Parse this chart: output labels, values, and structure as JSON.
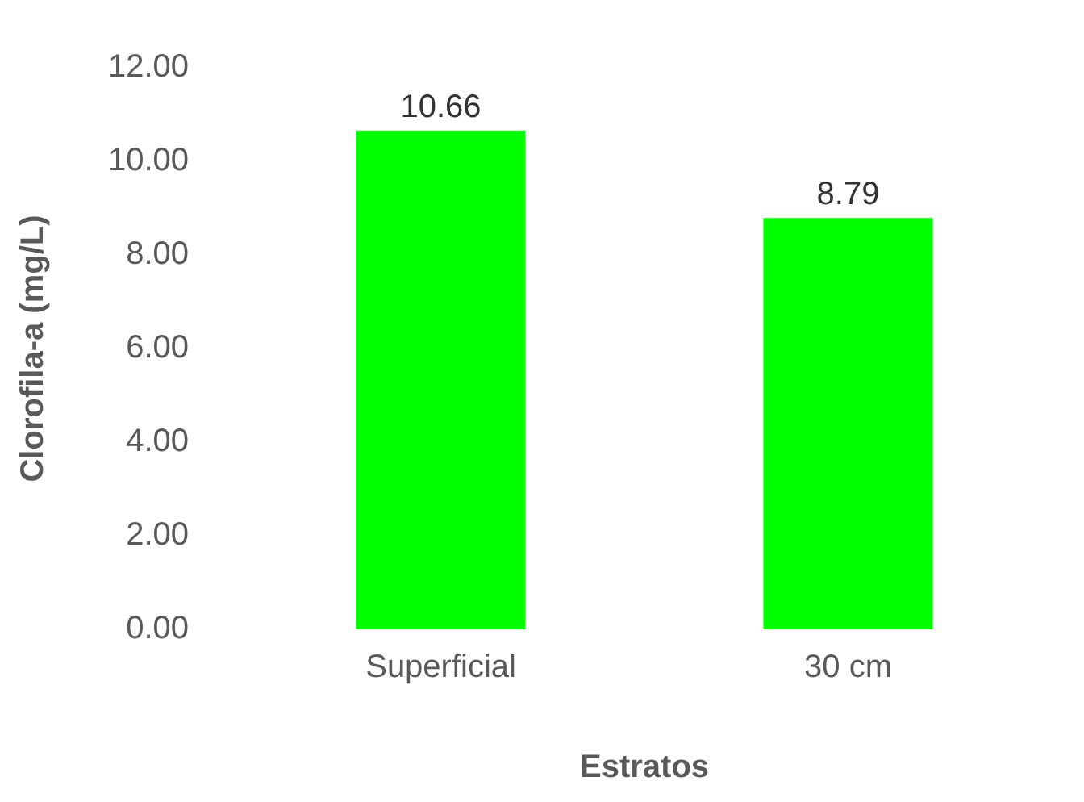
{
  "chart_data": {
    "type": "bar",
    "xlabel": "Estratos",
    "ylabel": "Clorofila-a (mg/L)",
    "categories": [
      "Superficial",
      "30 cm"
    ],
    "values": [
      10.66,
      8.79
    ],
    "color": "#00ff00",
    "ylim": [
      0,
      12
    ],
    "yticks": [
      {
        "value": 0,
        "label": "0.00"
      },
      {
        "value": 2,
        "label": "2.00"
      },
      {
        "value": 4,
        "label": "4.00"
      },
      {
        "value": 6,
        "label": "6.00"
      },
      {
        "value": 8,
        "label": "8.00"
      },
      {
        "value": 10,
        "label": "10.00"
      },
      {
        "value": 12,
        "label": "12.00"
      }
    ],
    "grid": false,
    "legend": false,
    "data_labels": true
  }
}
